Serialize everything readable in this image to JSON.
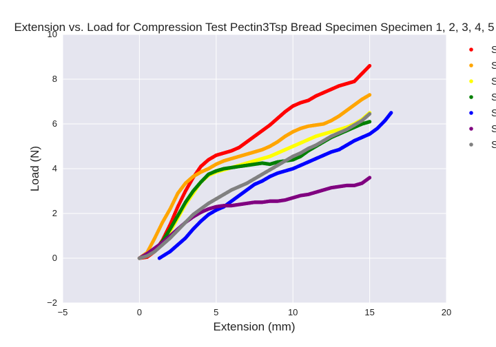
{
  "chart_data": {
    "type": "scatter",
    "title": "Extension vs. Load for Compression Test Pectin3Tsp Bread Specimen Specimen 1, 2, 3, 4, 5",
    "xlabel": "Extension (mm)",
    "ylabel": "Load (N)",
    "xlim": [
      -5,
      20
    ],
    "ylim": [
      -2,
      10
    ],
    "xticks": [
      "−5",
      "0",
      "5",
      "10",
      "15",
      "20"
    ],
    "yticks": [
      "−2",
      "0",
      "2",
      "4",
      "6",
      "8",
      "10"
    ],
    "grid": true,
    "legend_position": "right-outside",
    "legend_labels": [
      "S",
      "S",
      "S",
      "S",
      "S",
      "S",
      "S"
    ],
    "series": [
      {
        "color": "#ff0000",
        "points": [
          [
            0,
            0
          ],
          [
            0.5,
            0.05
          ],
          [
            1,
            0.3
          ],
          [
            1.5,
            0.8
          ],
          [
            2,
            1.5
          ],
          [
            2.5,
            2.3
          ],
          [
            3,
            3
          ],
          [
            3.5,
            3.6
          ],
          [
            4,
            4.1
          ],
          [
            4.5,
            4.4
          ],
          [
            5,
            4.6
          ],
          [
            5.5,
            4.7
          ],
          [
            6,
            4.8
          ],
          [
            6.5,
            4.95
          ],
          [
            7,
            5.2
          ],
          [
            7.5,
            5.45
          ],
          [
            8,
            5.7
          ],
          [
            8.5,
            5.95
          ],
          [
            9,
            6.25
          ],
          [
            9.5,
            6.55
          ],
          [
            10,
            6.8
          ],
          [
            10.5,
            6.95
          ],
          [
            11,
            7.05
          ],
          [
            11.5,
            7.25
          ],
          [
            12,
            7.4
          ],
          [
            12.5,
            7.55
          ],
          [
            13,
            7.7
          ],
          [
            13.5,
            7.8
          ],
          [
            14,
            7.9
          ],
          [
            14.5,
            8.25
          ],
          [
            15,
            8.6
          ]
        ]
      },
      {
        "color": "#ffa500",
        "points": [
          [
            0,
            0
          ],
          [
            0.5,
            0.25
          ],
          [
            1,
            0.9
          ],
          [
            1.5,
            1.6
          ],
          [
            2,
            2.2
          ],
          [
            2.5,
            2.9
          ],
          [
            3,
            3.35
          ],
          [
            3.5,
            3.65
          ],
          [
            4,
            3.85
          ],
          [
            4.5,
            4
          ],
          [
            5,
            4.2
          ],
          [
            5.5,
            4.35
          ],
          [
            6,
            4.45
          ],
          [
            6.5,
            4.55
          ],
          [
            7,
            4.65
          ],
          [
            7.5,
            4.75
          ],
          [
            8,
            4.85
          ],
          [
            8.5,
            5
          ],
          [
            9,
            5.2
          ],
          [
            9.5,
            5.45
          ],
          [
            10,
            5.65
          ],
          [
            10.5,
            5.8
          ],
          [
            11,
            5.9
          ],
          [
            11.5,
            5.95
          ],
          [
            12,
            6
          ],
          [
            12.5,
            6.15
          ],
          [
            13,
            6.35
          ],
          [
            13.5,
            6.6
          ],
          [
            14,
            6.85
          ],
          [
            14.5,
            7.1
          ],
          [
            15,
            7.3
          ]
        ]
      },
      {
        "color": "#ffff00",
        "points": [
          [
            0,
            0
          ],
          [
            0.5,
            0.1
          ],
          [
            1,
            0.3
          ],
          [
            1.5,
            0.7
          ],
          [
            2,
            1.2
          ],
          [
            2.5,
            1.8
          ],
          [
            3,
            2.4
          ],
          [
            3.5,
            2.9
          ],
          [
            4,
            3.4
          ],
          [
            4.5,
            3.7
          ],
          [
            5,
            3.85
          ],
          [
            5.5,
            3.95
          ],
          [
            6,
            4.05
          ],
          [
            6.5,
            4.15
          ],
          [
            7,
            4.25
          ],
          [
            7.5,
            4.35
          ],
          [
            8,
            4.45
          ],
          [
            8.5,
            4.55
          ],
          [
            9,
            4.7
          ],
          [
            9.5,
            4.85
          ],
          [
            10,
            5
          ],
          [
            10.5,
            5.15
          ],
          [
            11,
            5.3
          ],
          [
            11.5,
            5.45
          ],
          [
            12,
            5.55
          ],
          [
            12.5,
            5.65
          ],
          [
            13,
            5.75
          ],
          [
            13.5,
            5.85
          ],
          [
            14,
            6
          ],
          [
            14.5,
            6.2
          ],
          [
            15,
            6.5
          ]
        ]
      },
      {
        "color": "#008000",
        "points": [
          [
            0,
            0
          ],
          [
            0.5,
            0.1
          ],
          [
            1,
            0.35
          ],
          [
            1.5,
            0.75
          ],
          [
            2,
            1.3
          ],
          [
            2.5,
            1.9
          ],
          [
            3,
            2.5
          ],
          [
            3.5,
            3
          ],
          [
            4,
            3.4
          ],
          [
            4.5,
            3.75
          ],
          [
            5,
            3.9
          ],
          [
            5.5,
            4
          ],
          [
            6,
            4.05
          ],
          [
            6.5,
            4.1
          ],
          [
            7,
            4.15
          ],
          [
            7.5,
            4.2
          ],
          [
            8,
            4.25
          ],
          [
            8.5,
            4.2
          ],
          [
            9,
            4.3
          ],
          [
            9.5,
            4.35
          ],
          [
            10,
            4.4
          ],
          [
            10.5,
            4.55
          ],
          [
            11,
            4.8
          ],
          [
            11.5,
            5
          ],
          [
            12,
            5.2
          ],
          [
            12.5,
            5.4
          ],
          [
            13,
            5.55
          ],
          [
            13.5,
            5.7
          ],
          [
            14,
            5.85
          ],
          [
            14.5,
            6
          ],
          [
            15,
            6.1
          ]
        ]
      },
      {
        "color": "#0000ff",
        "points": [
          [
            1.3,
            0
          ],
          [
            2,
            0.3
          ],
          [
            2.5,
            0.6
          ],
          [
            3,
            0.9
          ],
          [
            3.5,
            1.3
          ],
          [
            4,
            1.65
          ],
          [
            4.5,
            1.95
          ],
          [
            5,
            2.15
          ],
          [
            5.5,
            2.3
          ],
          [
            6,
            2.55
          ],
          [
            6.5,
            2.8
          ],
          [
            7,
            3.05
          ],
          [
            7.5,
            3.3
          ],
          [
            8,
            3.45
          ],
          [
            8.5,
            3.65
          ],
          [
            9,
            3.8
          ],
          [
            9.5,
            3.9
          ],
          [
            10,
            4
          ],
          [
            10.5,
            4.15
          ],
          [
            11,
            4.3
          ],
          [
            11.5,
            4.45
          ],
          [
            12,
            4.6
          ],
          [
            12.5,
            4.75
          ],
          [
            13,
            4.85
          ],
          [
            13.5,
            5.05
          ],
          [
            14,
            5.25
          ],
          [
            14.5,
            5.4
          ],
          [
            15,
            5.55
          ],
          [
            15.5,
            5.8
          ],
          [
            16,
            6.15
          ],
          [
            16.4,
            6.5
          ]
        ]
      },
      {
        "color": "#800080",
        "points": [
          [
            0,
            0
          ],
          [
            0.5,
            0.2
          ],
          [
            1,
            0.45
          ],
          [
            1.5,
            0.7
          ],
          [
            2,
            1
          ],
          [
            2.5,
            1.3
          ],
          [
            3,
            1.6
          ],
          [
            3.5,
            1.85
          ],
          [
            4,
            2.05
          ],
          [
            4.5,
            2.2
          ],
          [
            5,
            2.3
          ],
          [
            5.5,
            2.35
          ],
          [
            6,
            2.35
          ],
          [
            6.5,
            2.4
          ],
          [
            7,
            2.45
          ],
          [
            7.5,
            2.5
          ],
          [
            8,
            2.5
          ],
          [
            8.5,
            2.55
          ],
          [
            9,
            2.55
          ],
          [
            9.5,
            2.6
          ],
          [
            10,
            2.7
          ],
          [
            10.5,
            2.8
          ],
          [
            11,
            2.85
          ],
          [
            11.5,
            2.95
          ],
          [
            12,
            3.05
          ],
          [
            12.5,
            3.15
          ],
          [
            13,
            3.2
          ],
          [
            13.5,
            3.25
          ],
          [
            14,
            3.25
          ],
          [
            14.5,
            3.35
          ],
          [
            15,
            3.6
          ]
        ]
      },
      {
        "color": "#808080",
        "points": [
          [
            0,
            0
          ],
          [
            0.5,
            0.1
          ],
          [
            1,
            0.3
          ],
          [
            1.5,
            0.6
          ],
          [
            2,
            0.9
          ],
          [
            2.5,
            1.25
          ],
          [
            3,
            1.6
          ],
          [
            3.5,
            1.95
          ],
          [
            4,
            2.2
          ],
          [
            4.5,
            2.45
          ],
          [
            5,
            2.65
          ],
          [
            5.5,
            2.85
          ],
          [
            6,
            3.05
          ],
          [
            6.5,
            3.2
          ],
          [
            7,
            3.35
          ],
          [
            7.5,
            3.55
          ],
          [
            8,
            3.75
          ],
          [
            8.5,
            3.95
          ],
          [
            9,
            4.15
          ],
          [
            9.5,
            4.35
          ],
          [
            10,
            4.55
          ],
          [
            10.5,
            4.7
          ],
          [
            11,
            4.9
          ],
          [
            11.5,
            5.05
          ],
          [
            12,
            5.25
          ],
          [
            12.5,
            5.45
          ],
          [
            13,
            5.6
          ],
          [
            13.5,
            5.75
          ],
          [
            14,
            5.95
          ],
          [
            14.5,
            6.15
          ],
          [
            15,
            6.45
          ]
        ]
      }
    ]
  },
  "style": {
    "plot_background": "#e5e5ef",
    "grid_color": "#ffffff",
    "text_color": "#222222"
  }
}
